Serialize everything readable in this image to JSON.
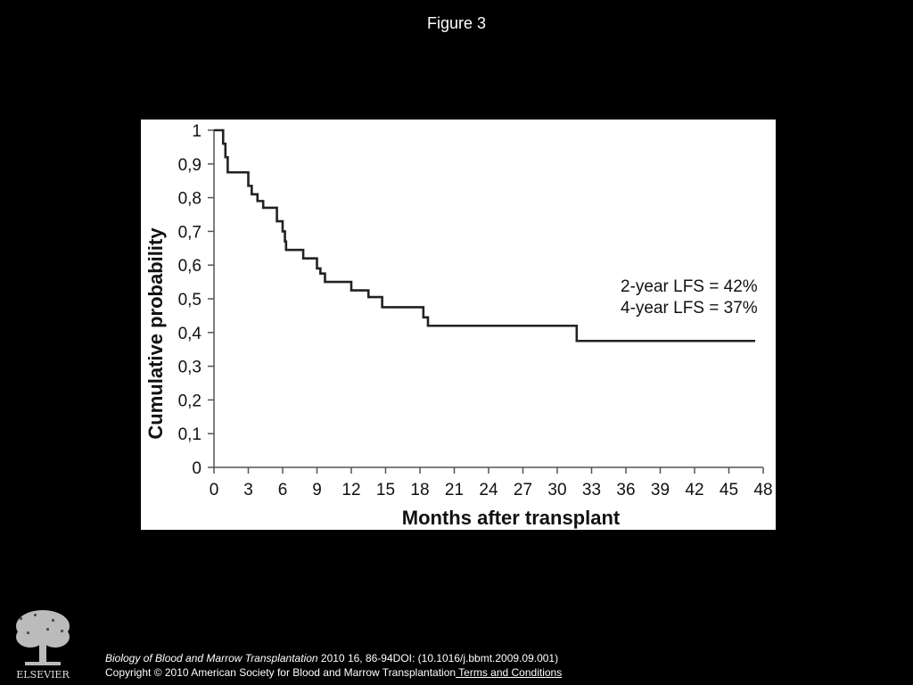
{
  "figure_title": "Figure 3",
  "chart_data": {
    "type": "line",
    "xlabel": "Months after transplant",
    "ylabel": "Cumulative probability",
    "xlim": [
      0,
      48
    ],
    "ylim": [
      0,
      1
    ],
    "x_ticks": [
      0,
      3,
      6,
      9,
      12,
      15,
      18,
      21,
      24,
      27,
      30,
      33,
      36,
      39,
      42,
      45,
      48
    ],
    "y_ticks": [
      0,
      0.1,
      0.2,
      0.3,
      0.4,
      0.5,
      0.6,
      0.7,
      0.8,
      0.9,
      1
    ],
    "y_tick_labels": [
      "0",
      "0,1",
      "0,2",
      "0,3",
      "0,4",
      "0,5",
      "0,6",
      "0,7",
      "0,8",
      "0,9",
      "1"
    ],
    "grid": false,
    "series": [
      {
        "step": true,
        "color": "#222222",
        "x": [
          0,
          0.8,
          1.0,
          1.2,
          3.0,
          3.3,
          3.8,
          4.3,
          5.5,
          6.0,
          6.2,
          6.3,
          7.8,
          9.0,
          9.3,
          9.7,
          11.7,
          12.0,
          13.3,
          13.5,
          14.5,
          14.7,
          18.3,
          18.7,
          31.5,
          31.7,
          47.3
        ],
        "y": [
          1,
          0.96,
          0.92,
          0.875,
          0.835,
          0.81,
          0.79,
          0.77,
          0.73,
          0.7,
          0.67,
          0.645,
          0.62,
          0.59,
          0.575,
          0.55,
          0.55,
          0.525,
          0.525,
          0.505,
          0.505,
          0.475,
          0.445,
          0.42,
          0.42,
          0.375,
          0.375
        ]
      }
    ],
    "annotations": [
      "2-year LFS = 42%",
      "4-year LFS = 37%"
    ]
  },
  "footer": {
    "journal": "Biology of Blood and Marrow Transplantation",
    "citation": " 2010 16, 86-94DOI: (10.1016/j.bbmt.2009.09.001)",
    "copyright": "Copyright © 2010 American Society for Blood and Marrow Transplantation",
    "terms_link": " Terms and Conditions"
  },
  "logo": {
    "icon": "elsevier-tree-logo",
    "text": "ELSEVIER"
  }
}
